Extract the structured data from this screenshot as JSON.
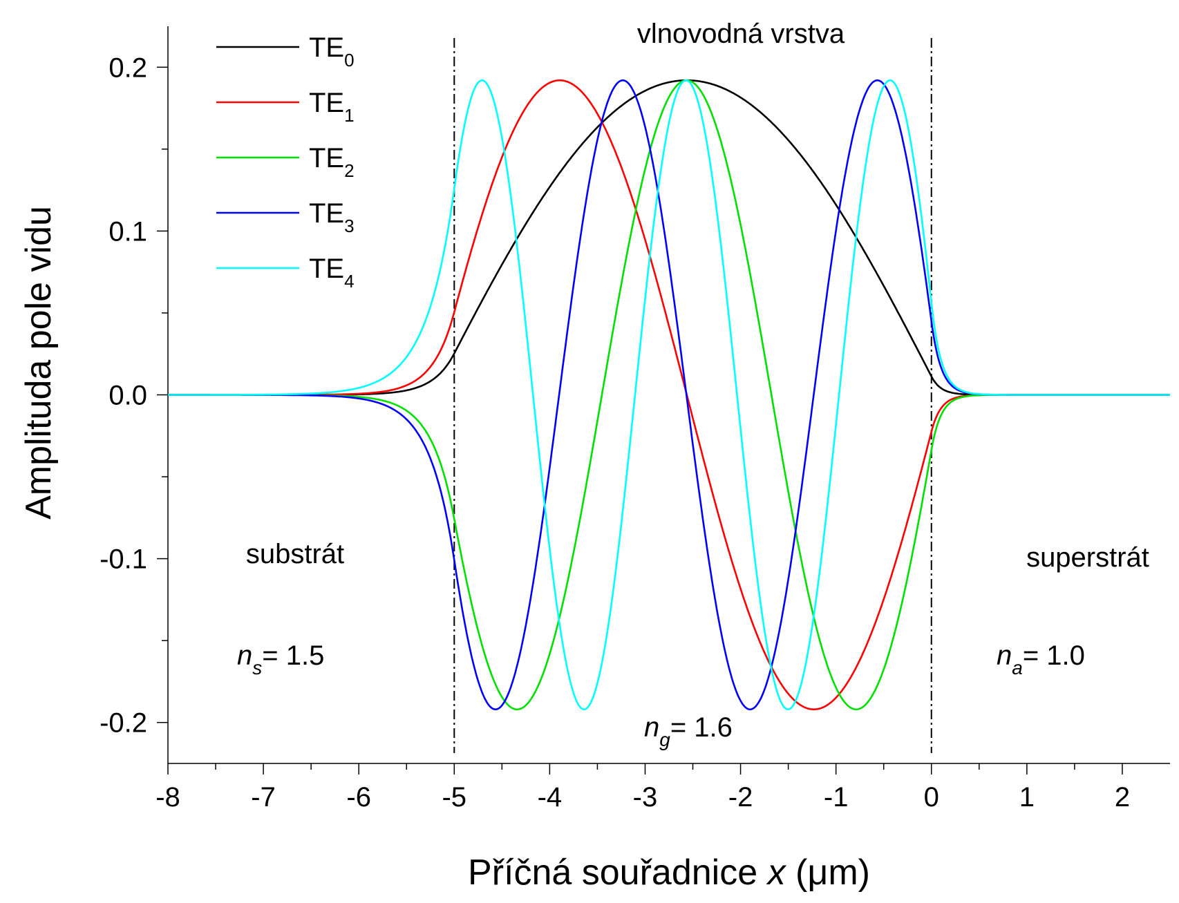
{
  "chart_data": {
    "type": "line",
    "title": "",
    "xlabel": "Příčná souřadnice",
    "xlabel_var": "x",
    "xlabel_unit": "(μm)",
    "ylabel": "Amplituda pole vidu",
    "xlim": [
      -8,
      2.5
    ],
    "ylim": [
      -0.225,
      0.225
    ],
    "x_ticks": [
      -8,
      -7,
      -6,
      -5,
      -4,
      -3,
      -2,
      -1,
      0,
      1,
      2
    ],
    "y_ticks": [
      -0.2,
      -0.1,
      0.0,
      0.1,
      0.2
    ],
    "x_tick_labels": [
      "-8",
      "-7",
      "-6",
      "-5",
      "-4",
      "-3",
      "-2",
      "-1",
      "0",
      "1",
      "2"
    ],
    "y_tick_labels": [
      "-0.2",
      "-0.1",
      "0.0",
      "0.1",
      "0.2"
    ],
    "grid": false,
    "legend_position": "top-left",
    "boundaries": [
      -5,
      0
    ],
    "annotations": {
      "guide": "vlnovodná vrstva",
      "substrate": "substrát",
      "superstrate": "superstrát",
      "n_s": {
        "symbol": "n",
        "sub": "s",
        "value": "= 1.5"
      },
      "n_g": {
        "symbol": "n",
        "sub": "g",
        "value": "= 1.6"
      },
      "n_a": {
        "symbol": "n",
        "sub": "a",
        "value": "= 1.0"
      }
    },
    "series": [
      {
        "name": "TE0",
        "label_main": "TE",
        "label_sub": "0",
        "color": "#000000",
        "mode": 0,
        "sign": 1
      },
      {
        "name": "TE1",
        "label_main": "TE",
        "label_sub": "1",
        "color": "#ff0000",
        "mode": 1,
        "sign": 1
      },
      {
        "name": "TE2",
        "label_main": "TE",
        "label_sub": "2",
        "color": "#00e000",
        "mode": 2,
        "sign": -1
      },
      {
        "name": "TE3",
        "label_main": "TE",
        "label_sub": "3",
        "color": "#0000ff",
        "mode": 3,
        "sign": -1
      },
      {
        "name": "TE4",
        "label_main": "TE",
        "label_sub": "4",
        "color": "#00ffff",
        "mode": 4,
        "sign": 1
      }
    ]
  }
}
